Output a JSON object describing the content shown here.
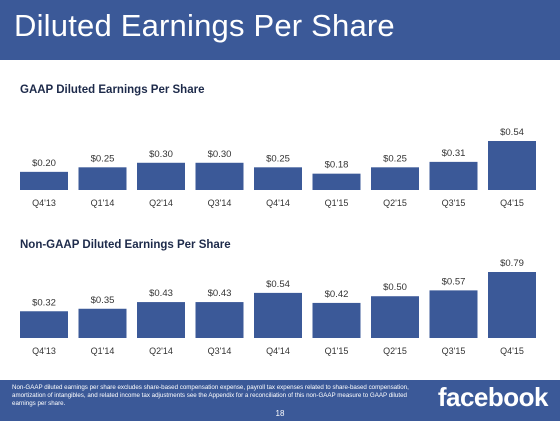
{
  "page": {
    "title": "Diluted Earnings Per Share",
    "footnote": "Non-GAAP diluted earnings per share excludes share-based compensation expense, payroll tax expenses related to share-based compensation, amortization of intangibles, and related income tax adjustments see the Appendix for a reconciliation of this non-GAAP measure to GAAP diluted earnings per share.",
    "logo": "facebook",
    "page_number": "18",
    "bar_color": "#3b5998",
    "title_bar_color": "#3b5998"
  },
  "chart_data": [
    {
      "type": "bar",
      "title": "GAAP Diluted Earnings Per Share",
      "categories": [
        "Q4'13",
        "Q1'14",
        "Q2'14",
        "Q3'14",
        "Q4'14",
        "Q1'15",
        "Q2'15",
        "Q3'15",
        "Q4'15"
      ],
      "values": [
        0.2,
        0.25,
        0.3,
        0.3,
        0.25,
        0.18,
        0.25,
        0.31,
        0.54
      ],
      "labels": [
        "$0.20",
        "$0.25",
        "$0.30",
        "$0.30",
        "$0.25",
        "$0.18",
        "$0.25",
        "$0.31",
        "$0.54"
      ],
      "xlabel": "",
      "ylabel": "",
      "ylim": [
        0,
        0.54
      ],
      "grid": false,
      "legend": "none"
    },
    {
      "type": "bar",
      "title": "Non-GAAP Diluted Earnings Per Share",
      "categories": [
        "Q4'13",
        "Q1'14",
        "Q2'14",
        "Q3'14",
        "Q4'14",
        "Q1'15",
        "Q2'15",
        "Q3'15",
        "Q4'15"
      ],
      "values": [
        0.32,
        0.35,
        0.43,
        0.43,
        0.54,
        0.42,
        0.5,
        0.57,
        0.79
      ],
      "labels": [
        "$0.32",
        "$0.35",
        "$0.43",
        "$0.43",
        "$0.54",
        "$0.42",
        "$0.50",
        "$0.57",
        "$0.79"
      ],
      "xlabel": "",
      "ylabel": "",
      "ylim": [
        0,
        0.79
      ],
      "grid": false,
      "legend": "none"
    }
  ]
}
